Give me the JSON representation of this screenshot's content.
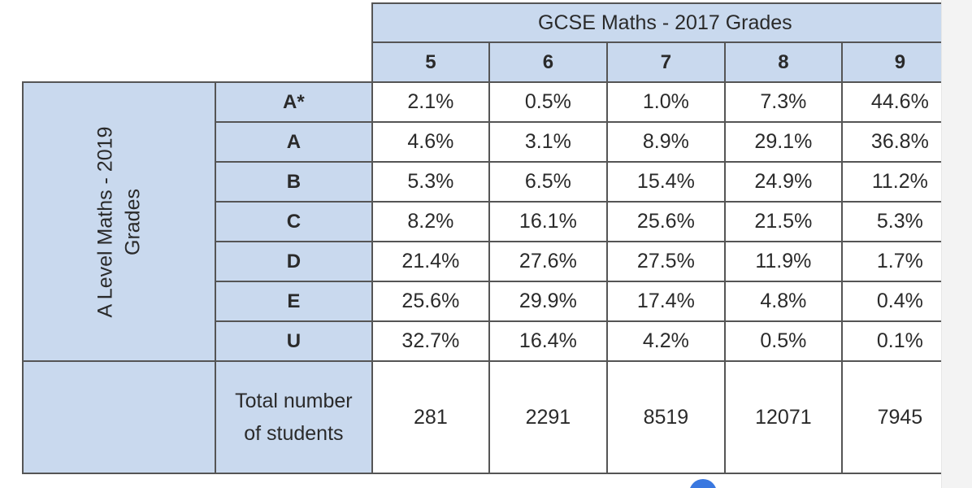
{
  "table": {
    "title": "GCSE Maths - 2017 Grades",
    "side_label_line1": "A Level Maths - 2019",
    "side_label_line2": "Grades",
    "gcse_grades": [
      "5",
      "6",
      "7",
      "8",
      "9"
    ],
    "rows": [
      {
        "grade": "A*",
        "values": [
          "2.1%",
          "0.5%",
          "1.0%",
          "7.3%",
          "44.6%"
        ]
      },
      {
        "grade": "A",
        "values": [
          "4.6%",
          "3.1%",
          "8.9%",
          "29.1%",
          "36.8%"
        ]
      },
      {
        "grade": "B",
        "values": [
          "5.3%",
          "6.5%",
          "15.4%",
          "24.9%",
          "11.2%"
        ]
      },
      {
        "grade": "C",
        "values": [
          "8.2%",
          "16.1%",
          "25.6%",
          "21.5%",
          "5.3%"
        ]
      },
      {
        "grade": "D",
        "values": [
          "21.4%",
          "27.6%",
          "27.5%",
          "11.9%",
          "1.7%"
        ]
      },
      {
        "grade": "E",
        "values": [
          "25.6%",
          "29.9%",
          "17.4%",
          "4.8%",
          "0.4%"
        ]
      },
      {
        "grade": "U",
        "values": [
          "32.7%",
          "16.4%",
          "4.2%",
          "0.5%",
          "0.1%"
        ]
      }
    ],
    "total_label_line1": "Total number",
    "total_label_line2": "of students",
    "totals": [
      "281",
      "2291",
      "8519",
      "12071",
      "7945"
    ],
    "header_color": "#c9d9ee"
  }
}
